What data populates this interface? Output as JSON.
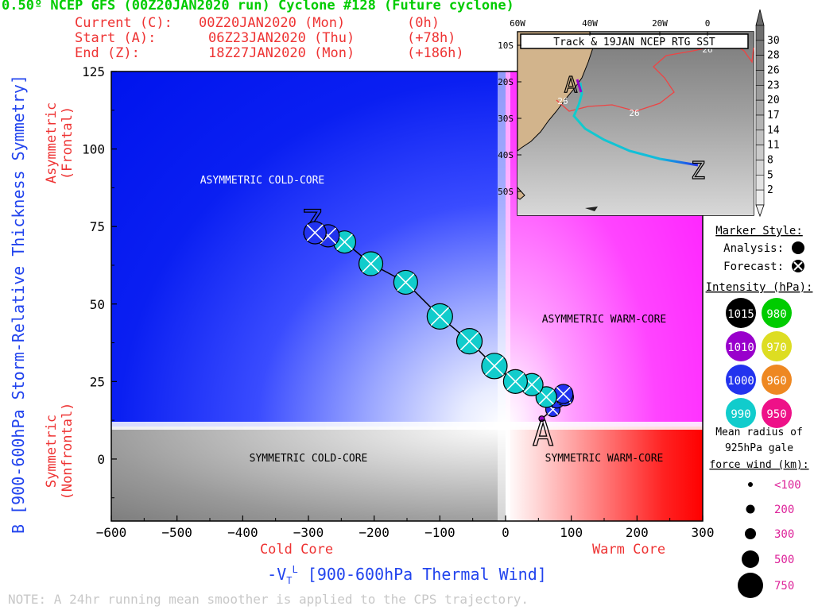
{
  "header": {
    "title": "0.50º NCEP GFS (00Z20JAN2020 run) Cyclone #128 (Future cyclone)",
    "current_label": "Current (C):",
    "current_time": "00Z20JAN2020 (Mon)",
    "current_offset": "(0h)",
    "start_label": "Start (A):",
    "start_time": "06Z23JAN2020 (Thu)",
    "start_offset": "(+78h)",
    "end_label": "End (Z):",
    "end_time": "18Z27JAN2020 (Mon)",
    "end_offset": "(+186h)"
  },
  "regions": {
    "asym_cold": "ASYMMETRIC COLD-CORE",
    "asym_warm": "ASYMMETRIC WARM-CORE",
    "sym_cold": "SYMMETRIC COLD-CORE",
    "sym_warm": "SYMMETRIC WARM-CORE"
  },
  "axes": {
    "ylabel": "B [900-600hPa Storm-Relative Thickness Symmetry]",
    "xlabel": "-V",
    "xlabel_rest": " [900-600hPa Thermal Wind]",
    "y_asym_1": "Asymmetric",
    "y_asym_2": "(Frontal)",
    "y_sym_1": "Symmetric",
    "y_sym_2": "(Nonfrontal)",
    "cold_core": "Cold Core",
    "warm_core": "Warm Core"
  },
  "note": "NOTE:  A 24hr running mean smoother is applied to the CPS trajectory.",
  "inset": {
    "title": "Track & 19JAN NCEP RTG SST",
    "lon_labels": [
      "60W",
      "40W",
      "20W",
      "0"
    ],
    "lat_labels": [
      "10S",
      "20S",
      "30S",
      "40S",
      "50S"
    ],
    "sst_labels": [
      "26",
      "26",
      "26"
    ],
    "colorbar_labels": [
      "30",
      "28",
      "26",
      "23",
      "20",
      "17",
      "14",
      "11",
      "8",
      "5",
      "2"
    ],
    "start_marker": "A",
    "end_marker": "Z"
  },
  "legend": {
    "marker_title": "Marker Style:",
    "analysis_label": "Analysis:",
    "forecast_label": "Forecast:",
    "intensity_title": "Intensity (hPa):",
    "intensity": [
      {
        "label": "1015",
        "color": "#000000"
      },
      {
        "label": "980",
        "color": "#00cc00"
      },
      {
        "label": "1010",
        "color": "#9900cc"
      },
      {
        "label": "970",
        "color": "#dddd22"
      },
      {
        "label": "1000",
        "color": "#2233ee"
      },
      {
        "label": "960",
        "color": "#ee8822"
      },
      {
        "label": "990",
        "color": "#11cccc"
      },
      {
        "label": "950",
        "color": "#ee1188"
      }
    ],
    "radius_title_1": "Mean radius of",
    "radius_title_2": "925hPa gale",
    "radius_title_3": "force wind (km):",
    "radius": [
      {
        "label": "<100",
        "size": 100
      },
      {
        "label": "200",
        "size": 200
      },
      {
        "label": "300",
        "size": 300
      },
      {
        "label": "500",
        "size": 500
      },
      {
        "label": "750",
        "size": 750
      }
    ]
  },
  "chart_data": {
    "type": "scatter",
    "xlabel": "-V [900-600hPa Thermal Wind]",
    "ylabel": "B [900-600hPa Storm-Relative Thickness Symmetry]",
    "xlim": [
      -600,
      300
    ],
    "ylim": [
      -20,
      125
    ],
    "xticks": [
      -600,
      -500,
      -400,
      -300,
      -200,
      -100,
      0,
      100,
      200,
      300
    ],
    "yticks": [
      0,
      25,
      50,
      75,
      100,
      125
    ],
    "grid": false,
    "start_point": {
      "label": "A",
      "x": 57,
      "y": 13
    },
    "end_point": {
      "label": "Z",
      "x": -295,
      "y": 76
    },
    "points": [
      {
        "x": 55,
        "y": 13,
        "mslp": 1010,
        "style": "analysis"
      },
      {
        "x": 72,
        "y": 16,
        "mslp": 1005,
        "style": "forecast"
      },
      {
        "x": 78,
        "y": 19,
        "mslp": 1000,
        "style": "forecast"
      },
      {
        "x": 90,
        "y": 20,
        "mslp": 1000,
        "style": "forecast"
      },
      {
        "x": 88,
        "y": 21,
        "mslp": 1000,
        "style": "forecast"
      },
      {
        "x": 62,
        "y": 20,
        "mslp": 997,
        "style": "forecast"
      },
      {
        "x": 40,
        "y": 24,
        "mslp": 993,
        "style": "forecast"
      },
      {
        "x": 15,
        "y": 25,
        "mslp": 990,
        "style": "forecast"
      },
      {
        "x": -17,
        "y": 30,
        "mslp": 990,
        "style": "forecast"
      },
      {
        "x": -55,
        "y": 38,
        "mslp": 990,
        "style": "forecast"
      },
      {
        "x": -100,
        "y": 46,
        "mslp": 990,
        "style": "forecast"
      },
      {
        "x": -152,
        "y": 57,
        "mslp": 992,
        "style": "forecast"
      },
      {
        "x": -205,
        "y": 63,
        "mslp": 994,
        "style": "forecast"
      },
      {
        "x": -245,
        "y": 70,
        "mslp": 996,
        "style": "forecast"
      },
      {
        "x": -270,
        "y": 72,
        "mslp": 998,
        "style": "forecast"
      },
      {
        "x": -290,
        "y": 73,
        "mslp": 1000,
        "style": "forecast"
      }
    ]
  }
}
